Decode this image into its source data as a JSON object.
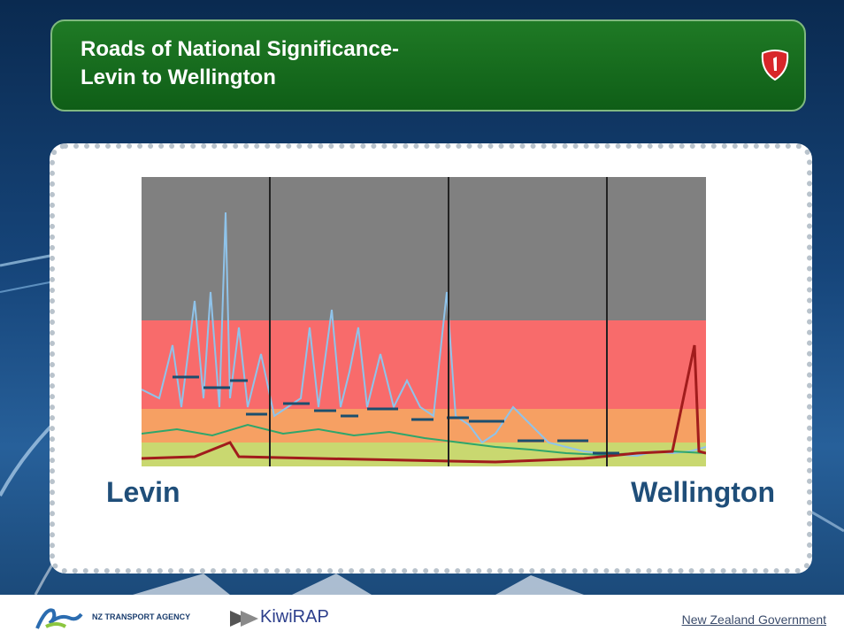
{
  "header": {
    "title_lines": [
      "Roads of National Significance-",
      "Levin to Wellington"
    ]
  },
  "labels": {
    "start": "Levin",
    "end": "Wellington"
  },
  "footer": {
    "agency": "NZ TRANSPORT AGENCY",
    "program": "KiwiRAP",
    "government": "New Zealand Government"
  }
}
